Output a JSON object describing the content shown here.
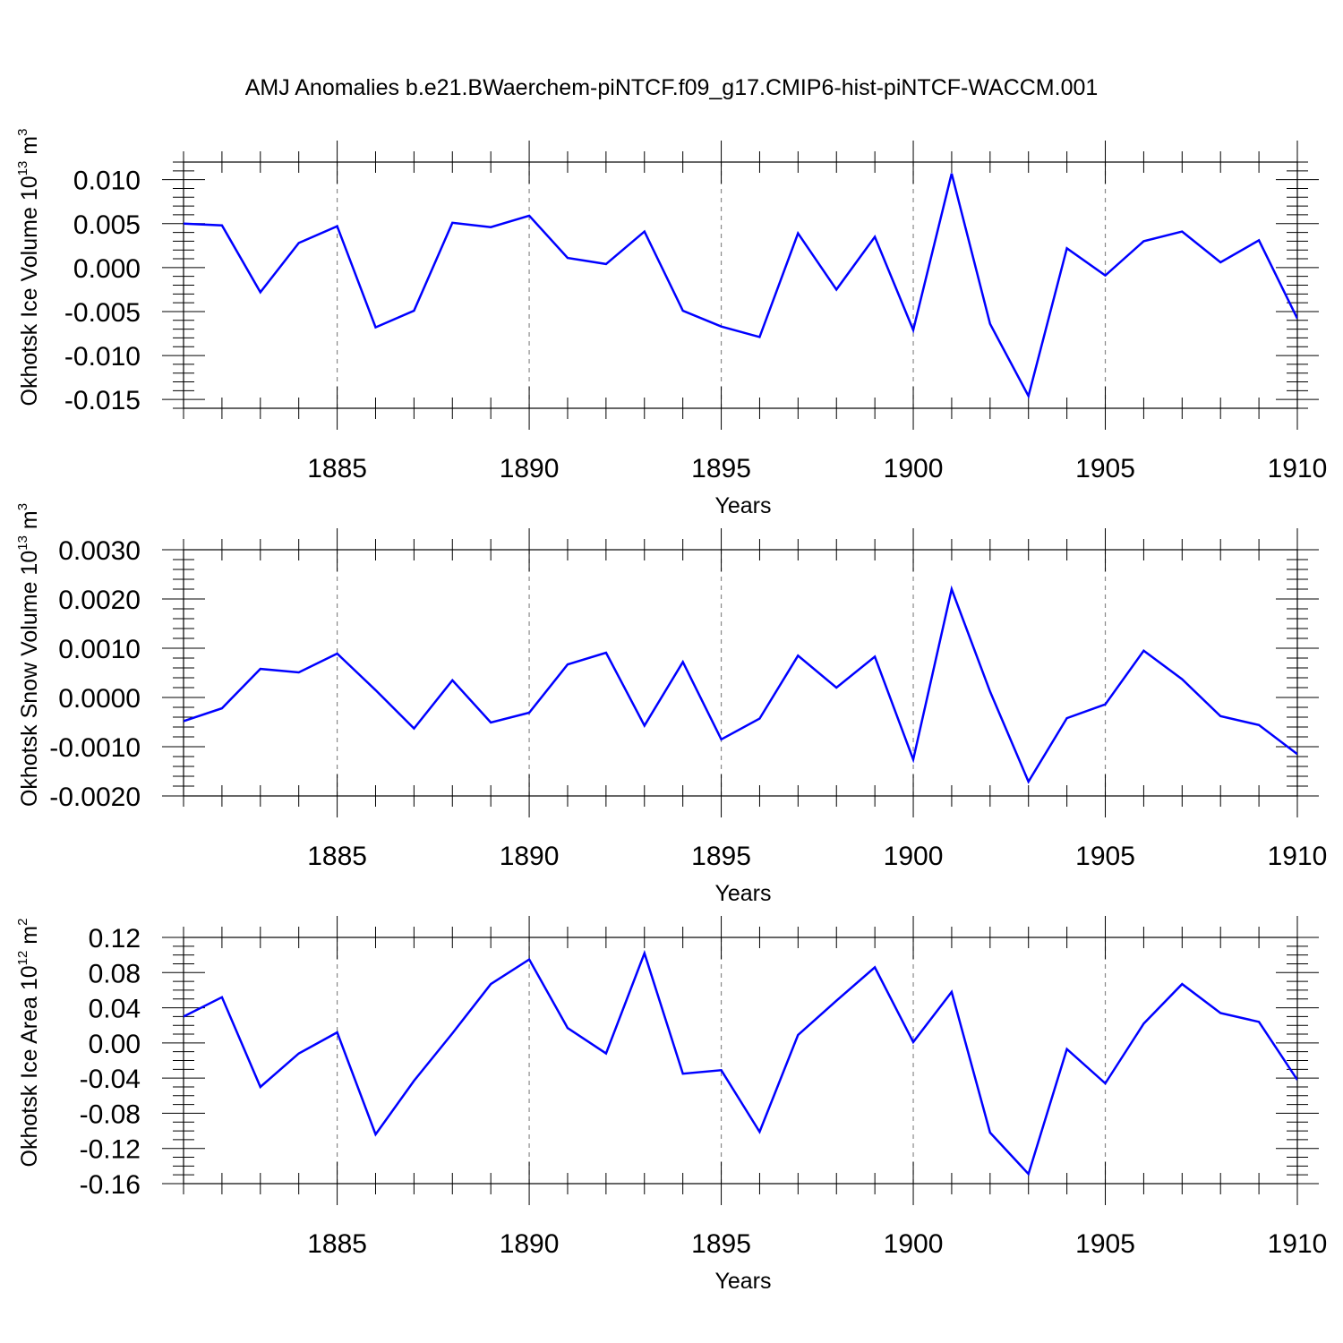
{
  "title": "AMJ Anomalies b.e21.BWaerchem-piNTCF.f09_g17.CMIP6-hist-piNTCF-WACCM.001",
  "chart_data": [
    {
      "type": "line",
      "ylabel": "Okhotsk Ice Volume 10",
      "ylabel_exp": "13",
      "ylabel_unit": " m",
      "ylabel_unit_exp": "3",
      "xlabel": "Years",
      "xlim": [
        1881,
        1910
      ],
      "ylim": [
        -0.016,
        0.012
      ],
      "xticks": [
        1885,
        1890,
        1895,
        1900,
        1905,
        1910
      ],
      "xtick_labels": [
        "1885",
        "1890",
        "1895",
        "1900",
        "1905",
        "1910"
      ],
      "yticks": [
        -0.015,
        -0.01,
        -0.005,
        0.0,
        0.005,
        0.01
      ],
      "ytick_labels": [
        "-0.015",
        "-0.010",
        "-0.005",
        "0.000",
        "0.005",
        "0.010"
      ],
      "ymajor": 0.005,
      "yminor": 0.001,
      "grid_x": true,
      "color": "#0000ff",
      "x": [
        1881,
        1882,
        1883,
        1884,
        1885,
        1886,
        1887,
        1888,
        1889,
        1890,
        1891,
        1892,
        1893,
        1894,
        1895,
        1896,
        1897,
        1898,
        1899,
        1900,
        1901,
        1902,
        1903,
        1904,
        1905,
        1906,
        1907,
        1908,
        1909,
        1910
      ],
      "values": [
        0.005,
        0.0048,
        -0.0028,
        0.0028,
        0.0047,
        -0.0068,
        -0.0049,
        0.0051,
        0.0046,
        0.0059,
        0.0011,
        0.0004,
        0.0041,
        -0.0049,
        -0.0067,
        -0.0079,
        0.0039,
        -0.0025,
        0.0035,
        -0.0071,
        0.0107,
        -0.0064,
        -0.0146,
        0.0022,
        -0.0009,
        0.003,
        0.0041,
        0.0006,
        0.0031,
        -0.0058
      ]
    },
    {
      "type": "line",
      "ylabel": "Okhotsk Snow Volume 10",
      "ylabel_exp": "13",
      "ylabel_unit": " m",
      "ylabel_unit_exp": "3",
      "xlabel": "Years",
      "xlim": [
        1881,
        1910
      ],
      "ylim": [
        -0.002,
        0.003
      ],
      "xticks": [
        1885,
        1890,
        1895,
        1900,
        1905,
        1910
      ],
      "xtick_labels": [
        "1885",
        "1890",
        "1895",
        "1900",
        "1905",
        "1910"
      ],
      "yticks": [
        -0.002,
        -0.001,
        0.0,
        0.001,
        0.002,
        0.003
      ],
      "ytick_labels": [
        "-0.0020",
        "-0.0010",
        "0.0000",
        "0.0010",
        "0.0020",
        "0.0030"
      ],
      "ymajor": 0.001,
      "yminor": 0.0002,
      "grid_x": true,
      "color": "#0000ff",
      "x": [
        1881,
        1882,
        1883,
        1884,
        1885,
        1886,
        1887,
        1888,
        1889,
        1890,
        1891,
        1892,
        1893,
        1894,
        1895,
        1896,
        1897,
        1898,
        1899,
        1900,
        1901,
        1902,
        1903,
        1904,
        1905,
        1906,
        1907,
        1908,
        1909,
        1910
      ],
      "values": [
        -0.00048,
        -0.00022,
        0.00058,
        0.00051,
        0.00089,
        0.00015,
        -0.00063,
        0.00035,
        -0.00051,
        -0.00031,
        0.00067,
        0.00091,
        -0.00057,
        0.00072,
        -0.00085,
        -0.00043,
        0.00085,
        0.0002,
        0.00083,
        -0.00126,
        0.0022,
        0.00012,
        -0.00171,
        -0.00042,
        -0.00014,
        0.00095,
        0.00037,
        -0.00038,
        -0.00056,
        -0.00115
      ]
    },
    {
      "type": "line",
      "ylabel": "Okhotsk Ice Area 10",
      "ylabel_exp": "12",
      "ylabel_unit": " m",
      "ylabel_unit_exp": "2",
      "xlabel": "Years",
      "xlim": [
        1881,
        1910
      ],
      "ylim": [
        -0.16,
        0.12
      ],
      "xticks": [
        1885,
        1890,
        1895,
        1900,
        1905,
        1910
      ],
      "xtick_labels": [
        "1885",
        "1890",
        "1895",
        "1900",
        "1905",
        "1910"
      ],
      "yticks": [
        -0.16,
        -0.12,
        -0.08,
        -0.04,
        0.0,
        0.04,
        0.08,
        0.12
      ],
      "ytick_labels": [
        "-0.16",
        "-0.12",
        "-0.08",
        "-0.04",
        "0.00",
        "0.04",
        "0.08",
        "0.12"
      ],
      "ymajor": 0.04,
      "yminor": 0.01,
      "grid_x": true,
      "color": "#0000ff",
      "x": [
        1881,
        1882,
        1883,
        1884,
        1885,
        1886,
        1887,
        1888,
        1889,
        1890,
        1891,
        1892,
        1893,
        1894,
        1895,
        1896,
        1897,
        1898,
        1899,
        1900,
        1901,
        1902,
        1903,
        1904,
        1905,
        1906,
        1907,
        1908,
        1909,
        1910
      ],
      "values": [
        0.03,
        0.052,
        -0.05,
        -0.012,
        0.012,
        -0.104,
        -0.043,
        0.011,
        0.067,
        0.095,
        0.017,
        -0.012,
        0.102,
        -0.035,
        -0.031,
        -0.101,
        0.009,
        0.048,
        0.086,
        0.001,
        0.058,
        -0.102,
        -0.149,
        -0.007,
        -0.046,
        0.022,
        0.067,
        0.034,
        0.024,
        -0.042
      ]
    }
  ]
}
